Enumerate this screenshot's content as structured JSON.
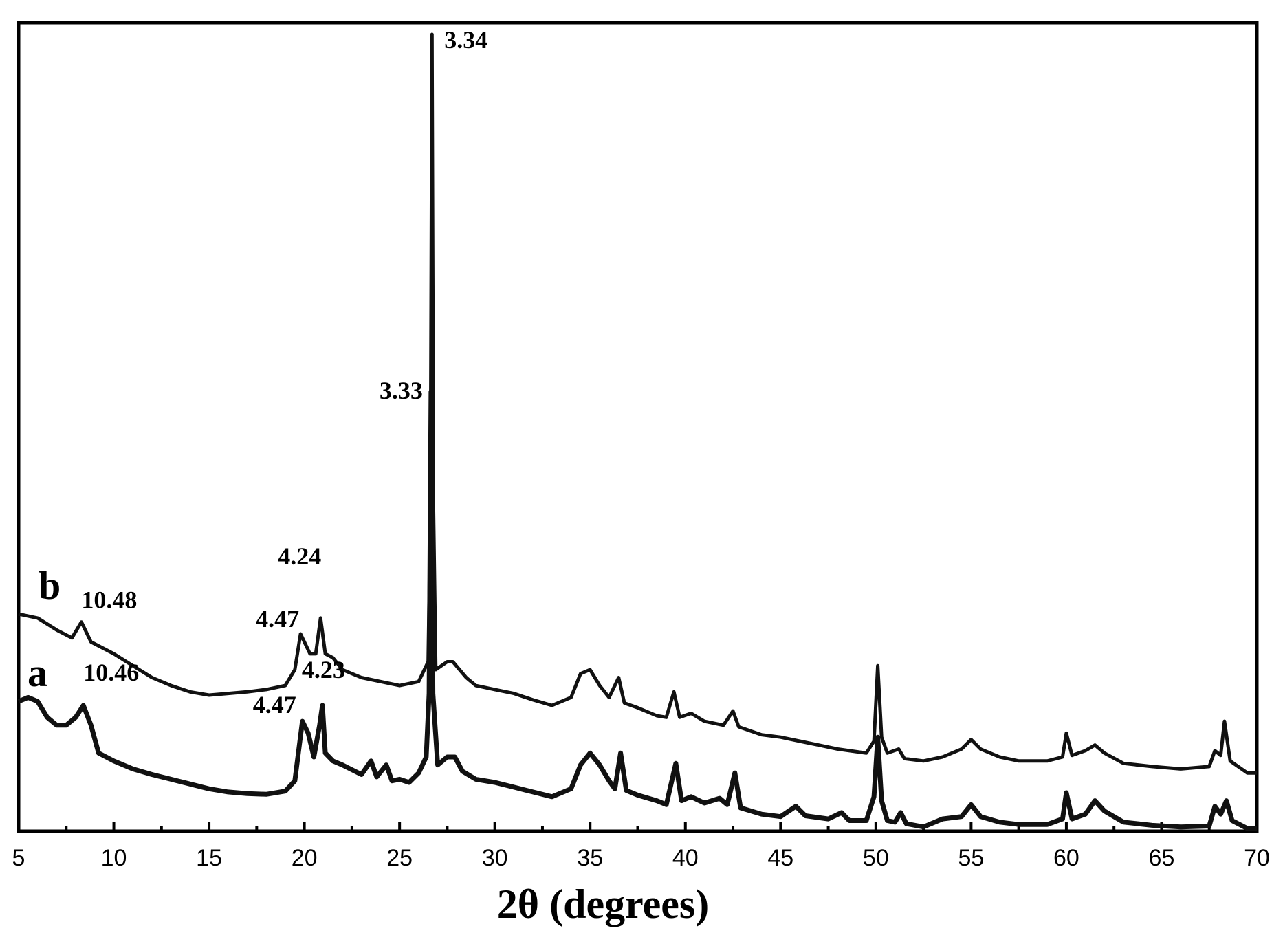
{
  "chart_data": {
    "type": "line",
    "title": "",
    "xlabel": "2θ (degrees)",
    "ylabel": "",
    "xlim": [
      5,
      70
    ],
    "x_ticks": [
      5,
      10,
      15,
      20,
      25,
      30,
      35,
      40,
      45,
      50,
      55,
      60,
      65,
      70
    ],
    "y_axis": "arbitrary intensity, no ticks",
    "grid": false,
    "series": [
      {
        "name": "a",
        "color": "#111111",
        "points": [
          [
            5,
            0.16
          ],
          [
            5.5,
            0.165
          ],
          [
            6,
            0.16
          ],
          [
            6.5,
            0.14
          ],
          [
            7,
            0.13
          ],
          [
            7.5,
            0.13
          ],
          [
            8,
            0.14
          ],
          [
            8.4,
            0.155
          ],
          [
            8.8,
            0.13
          ],
          [
            9.2,
            0.095
          ],
          [
            10,
            0.085
          ],
          [
            11,
            0.075
          ],
          [
            12,
            0.068
          ],
          [
            13,
            0.062
          ],
          [
            14,
            0.056
          ],
          [
            15,
            0.05
          ],
          [
            16,
            0.046
          ],
          [
            17,
            0.044
          ],
          [
            18,
            0.043
          ],
          [
            19,
            0.047
          ],
          [
            19.5,
            0.06
          ],
          [
            19.9,
            0.135
          ],
          [
            20.2,
            0.12
          ],
          [
            20.5,
            0.09
          ],
          [
            20.8,
            0.13
          ],
          [
            20.95,
            0.155
          ],
          [
            21.1,
            0.095
          ],
          [
            21.5,
            0.085
          ],
          [
            22,
            0.08
          ],
          [
            23,
            0.068
          ],
          [
            23.5,
            0.085
          ],
          [
            23.8,
            0.065
          ],
          [
            24.3,
            0.08
          ],
          [
            24.6,
            0.06
          ],
          [
            25,
            0.062
          ],
          [
            25.5,
            0.058
          ],
          [
            26,
            0.07
          ],
          [
            26.4,
            0.09
          ],
          [
            26.55,
            0.17
          ],
          [
            26.65,
            0.55
          ],
          [
            26.75,
            0.17
          ],
          [
            27,
            0.08
          ],
          [
            27.5,
            0.09
          ],
          [
            27.9,
            0.09
          ],
          [
            28.3,
            0.072
          ],
          [
            29,
            0.062
          ],
          [
            30,
            0.058
          ],
          [
            31,
            0.052
          ],
          [
            32,
            0.046
          ],
          [
            33,
            0.04
          ],
          [
            34,
            0.05
          ],
          [
            34.5,
            0.08
          ],
          [
            35,
            0.095
          ],
          [
            35.5,
            0.08
          ],
          [
            36,
            0.06
          ],
          [
            36.3,
            0.05
          ],
          [
            36.6,
            0.095
          ],
          [
            36.9,
            0.048
          ],
          [
            37.5,
            0.042
          ],
          [
            38.5,
            0.035
          ],
          [
            39,
            0.03
          ],
          [
            39.5,
            0.082
          ],
          [
            39.8,
            0.035
          ],
          [
            40.3,
            0.04
          ],
          [
            41,
            0.032
          ],
          [
            41.8,
            0.038
          ],
          [
            42.2,
            0.03
          ],
          [
            42.6,
            0.07
          ],
          [
            42.9,
            0.026
          ],
          [
            44,
            0.018
          ],
          [
            45,
            0.015
          ],
          [
            45.8,
            0.028
          ],
          [
            46.3,
            0.016
          ],
          [
            47.5,
            0.012
          ],
          [
            48.2,
            0.02
          ],
          [
            48.6,
            0.01
          ],
          [
            49.5,
            0.01
          ],
          [
            49.9,
            0.04
          ],
          [
            50.1,
            0.115
          ],
          [
            50.3,
            0.035
          ],
          [
            50.6,
            0.01
          ],
          [
            51,
            0.008
          ],
          [
            51.3,
            0.02
          ],
          [
            51.6,
            0.006
          ],
          [
            52.5,
            0.002
          ],
          [
            53.5,
            0.012
          ],
          [
            54.5,
            0.015
          ],
          [
            55,
            0.03
          ],
          [
            55.5,
            0.015
          ],
          [
            56.5,
            0.008
          ],
          [
            57.5,
            0.005
          ],
          [
            59,
            0.005
          ],
          [
            59.8,
            0.012
          ],
          [
            60,
            0.045
          ],
          [
            60.3,
            0.012
          ],
          [
            61,
            0.018
          ],
          [
            61.5,
            0.035
          ],
          [
            62,
            0.022
          ],
          [
            63,
            0.008
          ],
          [
            64.5,
            0.004
          ],
          [
            66,
            0.002
          ],
          [
            67.5,
            0.003
          ],
          [
            67.8,
            0.028
          ],
          [
            68.1,
            0.018
          ],
          [
            68.4,
            0.035
          ],
          [
            68.7,
            0.01
          ],
          [
            69.5,
            0
          ],
          [
            70,
            0
          ]
        ]
      },
      {
        "name": "b",
        "color": "#111111",
        "points": [
          [
            5,
            0.27
          ],
          [
            6,
            0.265
          ],
          [
            7,
            0.25
          ],
          [
            7.8,
            0.24
          ],
          [
            8.3,
            0.26
          ],
          [
            8.8,
            0.235
          ],
          [
            10,
            0.22
          ],
          [
            11,
            0.205
          ],
          [
            12,
            0.19
          ],
          [
            13,
            0.18
          ],
          [
            14,
            0.172
          ],
          [
            15,
            0.168
          ],
          [
            16,
            0.17
          ],
          [
            17,
            0.172
          ],
          [
            18,
            0.175
          ],
          [
            19,
            0.18
          ],
          [
            19.5,
            0.2
          ],
          [
            19.8,
            0.245
          ],
          [
            20.3,
            0.22
          ],
          [
            20.6,
            0.22
          ],
          [
            20.85,
            0.265
          ],
          [
            21.1,
            0.22
          ],
          [
            21.5,
            0.215
          ],
          [
            22,
            0.2
          ],
          [
            23,
            0.19
          ],
          [
            24,
            0.185
          ],
          [
            25,
            0.18
          ],
          [
            26,
            0.185
          ],
          [
            26.5,
            0.21
          ],
          [
            26.62,
            0.4
          ],
          [
            26.7,
            1.0
          ],
          [
            26.78,
            0.4
          ],
          [
            26.9,
            0.2
          ],
          [
            27.5,
            0.21
          ],
          [
            27.8,
            0.21
          ],
          [
            28.5,
            0.19
          ],
          [
            29,
            0.18
          ],
          [
            30,
            0.175
          ],
          [
            31,
            0.17
          ],
          [
            32,
            0.162
          ],
          [
            33,
            0.155
          ],
          [
            34,
            0.165
          ],
          [
            34.5,
            0.195
          ],
          [
            35,
            0.2
          ],
          [
            35.5,
            0.18
          ],
          [
            36,
            0.165
          ],
          [
            36.5,
            0.19
          ],
          [
            36.8,
            0.158
          ],
          [
            37.5,
            0.152
          ],
          [
            38.5,
            0.142
          ],
          [
            39,
            0.14
          ],
          [
            39.4,
            0.172
          ],
          [
            39.7,
            0.14
          ],
          [
            40.3,
            0.145
          ],
          [
            41,
            0.135
          ],
          [
            42,
            0.13
          ],
          [
            42.5,
            0.148
          ],
          [
            42.8,
            0.128
          ],
          [
            44,
            0.118
          ],
          [
            45,
            0.115
          ],
          [
            46,
            0.11
          ],
          [
            47,
            0.105
          ],
          [
            48,
            0.1
          ],
          [
            49.5,
            0.095
          ],
          [
            49.9,
            0.11
          ],
          [
            50.1,
            0.205
          ],
          [
            50.3,
            0.115
          ],
          [
            50.6,
            0.095
          ],
          [
            51.2,
            0.1
          ],
          [
            51.5,
            0.088
          ],
          [
            52.5,
            0.085
          ],
          [
            53.5,
            0.09
          ],
          [
            54.5,
            0.1
          ],
          [
            55,
            0.112
          ],
          [
            55.5,
            0.1
          ],
          [
            56.5,
            0.09
          ],
          [
            57.5,
            0.085
          ],
          [
            59,
            0.085
          ],
          [
            59.8,
            0.09
          ],
          [
            60,
            0.12
          ],
          [
            60.3,
            0.092
          ],
          [
            61,
            0.098
          ],
          [
            61.5,
            0.105
          ],
          [
            62,
            0.095
          ],
          [
            63,
            0.082
          ],
          [
            64.5,
            0.078
          ],
          [
            66,
            0.075
          ],
          [
            67.5,
            0.078
          ],
          [
            67.8,
            0.098
          ],
          [
            68.1,
            0.092
          ],
          [
            68.3,
            0.135
          ],
          [
            68.6,
            0.085
          ],
          [
            69.5,
            0.07
          ],
          [
            70,
            0.07
          ]
        ]
      }
    ],
    "annotations": [
      {
        "text": "3.34",
        "x": 26.7,
        "series": "b"
      },
      {
        "text": "4.24",
        "x": 20.85,
        "series": "b"
      },
      {
        "text": "10.48",
        "x": 8.3,
        "series": "b"
      },
      {
        "text": "4.47",
        "x": 19.8,
        "series": "b"
      },
      {
        "text": "4.23",
        "x": 20.95,
        "series": "a"
      },
      {
        "text": "3.33",
        "x": 26.65,
        "series": "a"
      },
      {
        "text": "10.46",
        "x": 8.4,
        "series": "a"
      },
      {
        "text": "4.47",
        "x": 19.9,
        "series": "a"
      }
    ],
    "series_labels": [
      "b",
      "a"
    ]
  }
}
